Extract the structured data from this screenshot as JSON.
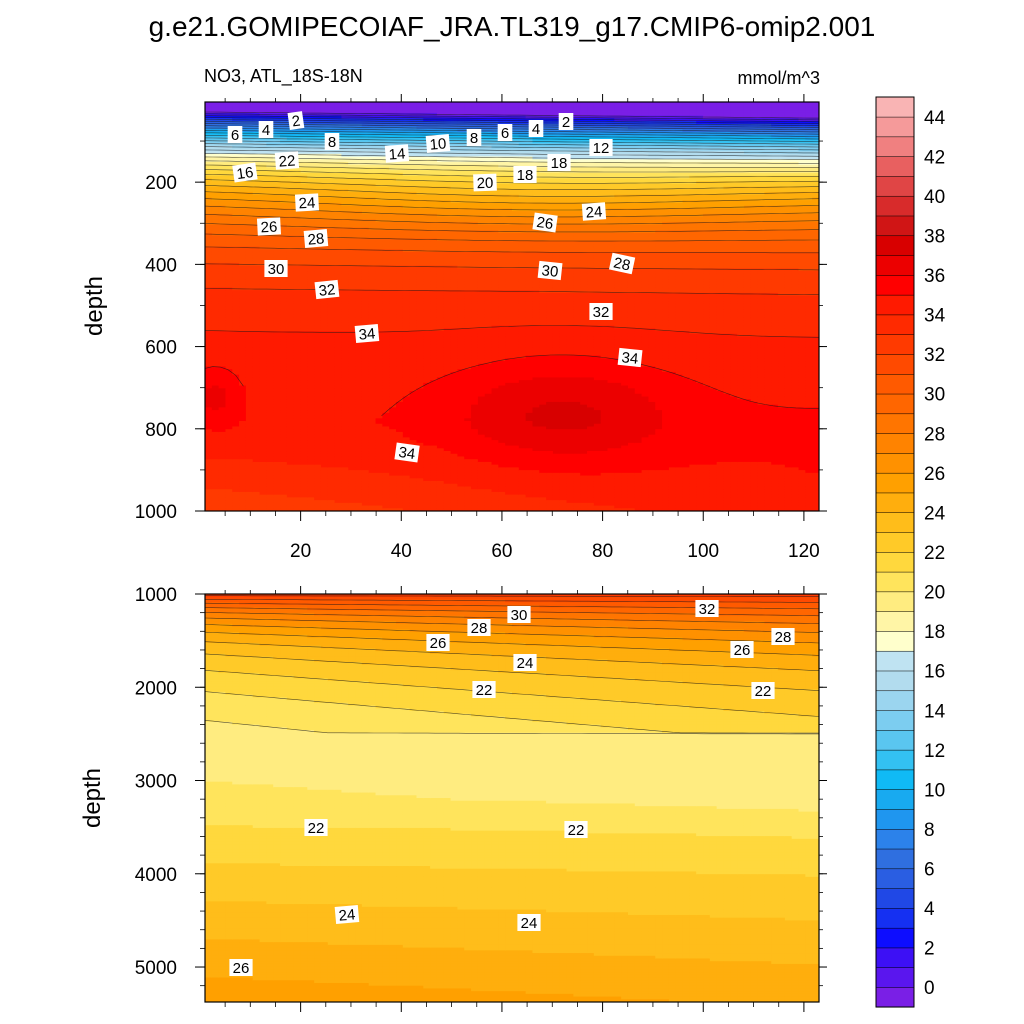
{
  "title": "g.e21.GOMIPECOIAF_JRA.TL319_g17.CMIP6-omip2.001",
  "chart_data": [
    {
      "type": "contour",
      "panel": "upper",
      "subtitle_left": "NO3, ATL_18S-18N",
      "subtitle_right": "mmol/m^3",
      "ylabel": "depth",
      "xlabel": "",
      "xlim": [
        1,
        123
      ],
      "ylim": [
        1000,
        5
      ],
      "x_ticks": [
        "20",
        "40",
        "60",
        "80",
        "100",
        "120"
      ],
      "y_ticks": [
        "200",
        "400",
        "600",
        "800",
        "1000"
      ],
      "contour_labels": [
        "6",
        "4",
        "2",
        "8",
        "10",
        "8",
        "6",
        "4",
        "2",
        "12",
        "14",
        "18",
        "16",
        "22",
        "20",
        "18",
        "24",
        "24",
        "26",
        "26",
        "28",
        "28",
        "30",
        "30",
        "32",
        "32",
        "34",
        "34",
        "34"
      ],
      "bands_depth_at_x": {
        "x": [
          1,
          60,
          123
        ],
        "levels": [
          2,
          4,
          6,
          8,
          10,
          12,
          14,
          16,
          18,
          20,
          22,
          24,
          26,
          28,
          30,
          32,
          34
        ],
        "depth_left": [
          40,
          60,
          80,
          100,
          120,
          135,
          150,
          165,
          185,
          200,
          215,
          250,
          310,
          350,
          400,
          470,
          560
        ],
        "depth_mid": [
          30,
          45,
          60,
          75,
          90,
          110,
          125,
          140,
          155,
          170,
          185,
          225,
          290,
          360,
          430,
          500,
          580
        ],
        "depth_right": [
          35,
          45,
          55,
          65,
          80,
          95,
          110,
          130,
          150,
          180,
          210,
          300,
          380,
          440,
          500,
          560,
          640
        ]
      },
      "max_core": {
        "value": 36,
        "x_range": [
          47,
          100
        ],
        "depth_range": [
          640,
          890
        ]
      }
    },
    {
      "type": "contour",
      "panel": "lower",
      "ylabel": "depth",
      "xlim": [
        1,
        123
      ],
      "ylim": [
        5375,
        1000
      ],
      "y_ticks": [
        "1000",
        "2000",
        "3000",
        "4000",
        "5000"
      ],
      "contour_labels": [
        "30",
        "32",
        "28",
        "28",
        "26",
        "26",
        "24",
        "22",
        "22",
        "22",
        "22",
        "24",
        "24",
        "26"
      ],
      "min_core": {
        "value": 21,
        "x_range": [
          3,
          123
        ],
        "depth_range": [
          2100,
          3100
        ]
      },
      "iso22_upper_depth": [
        1650,
        1900,
        2000
      ],
      "iso22_lower_depth": [
        3550,
        3520,
        3540
      ],
      "iso24_depth": [
        4400,
        4550,
        4300
      ],
      "iso26_depth": [
        4950,
        5300,
        5150
      ]
    }
  ],
  "colorbar": {
    "tick_labels": [
      "0",
      "2",
      "4",
      "6",
      "8",
      "10",
      "12",
      "14",
      "16",
      "18",
      "20",
      "22",
      "24",
      "26",
      "28",
      "30",
      "32",
      "34",
      "36",
      "38",
      "40",
      "42",
      "44"
    ],
    "colors": [
      "#7a1fe6",
      "#5a16ee",
      "#3d10f5",
      "#0d0dff",
      "#1530f2",
      "#2048e6",
      "#2a5ee2",
      "#2f6fe0",
      "#2c82ea",
      "#1f96ef",
      "#18aaf0",
      "#10baf5",
      "#33c1f2",
      "#5ac6f0",
      "#7ccdf0",
      "#9bd5ef",
      "#b2dcee",
      "#bfe3f2",
      "#ffffcc",
      "#fff5a6",
      "#ffec80",
      "#ffe45c",
      "#ffd83d",
      "#ffca28",
      "#ffbd1a",
      "#ffae0d",
      "#ffa000",
      "#ff9100",
      "#ff8300",
      "#ff7500",
      "#ff6600",
      "#ff5a00",
      "#ff4a00",
      "#ff3a00",
      "#ff2a00",
      "#ff1a00",
      "#ff0000",
      "#ec0000",
      "#d80000",
      "#d01515",
      "#d82b2b",
      "#e04545",
      "#e86060",
      "#f08080",
      "#f59a9a",
      "#f9b4b4"
    ]
  }
}
